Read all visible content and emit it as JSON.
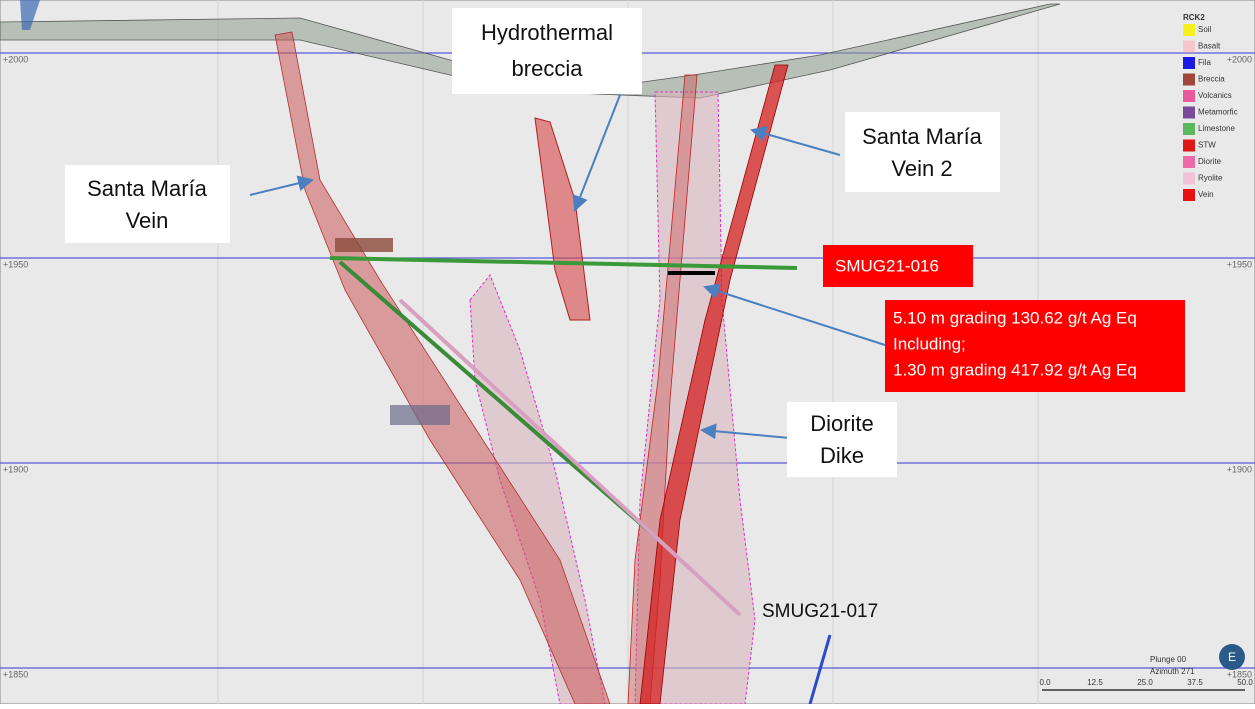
{
  "section": {
    "elevations": [
      "+2000",
      "+1950",
      "+1900",
      "+1850"
    ],
    "labels": {
      "hydrothermal_breccia": [
        "Hydrothermal",
        "breccia"
      ],
      "santa_maria_vein": [
        "Santa María",
        "Vein"
      ],
      "santa_maria_vein_2": [
        "Santa María",
        "Vein 2"
      ],
      "diorite_dike": [
        "Diorite",
        "Dike"
      ],
      "hole_016": "SMUG21-016",
      "hole_017": "SMUG21-017",
      "intercept": [
        "5.10 m grading 130.62 g/t Ag Eq",
        "Including;",
        "1.30 m grading 417.92 g/t Ag Eq"
      ]
    },
    "legend": {
      "title": "RCK2",
      "items": [
        {
          "name": "Soil",
          "color": "#f5f01e"
        },
        {
          "name": "Basalt",
          "color": "#f7c6cc"
        },
        {
          "name": "Fila",
          "color": "#1a1ae0"
        },
        {
          "name": "Breccia",
          "color": "#a0463c"
        },
        {
          "name": "Volcanics",
          "color": "#e85a9a"
        },
        {
          "name": "Metamorfic",
          "color": "#7a4a9a"
        },
        {
          "name": "Limestone",
          "color": "#5cb85c"
        },
        {
          "name": "STW",
          "color": "#e01818"
        },
        {
          "name": "Diorite",
          "color": "#ec6aa8"
        },
        {
          "name": "Ryolite",
          "color": "#f4c2d8"
        },
        {
          "name": "Vein",
          "color": "#e81010"
        }
      ]
    },
    "view": {
      "plunge": "Plunge 00",
      "azimuth": "Azimuth 271",
      "compass": "E"
    },
    "scale": [
      "0.0",
      "12.5",
      "25.0",
      "37.5",
      "50.0"
    ]
  }
}
